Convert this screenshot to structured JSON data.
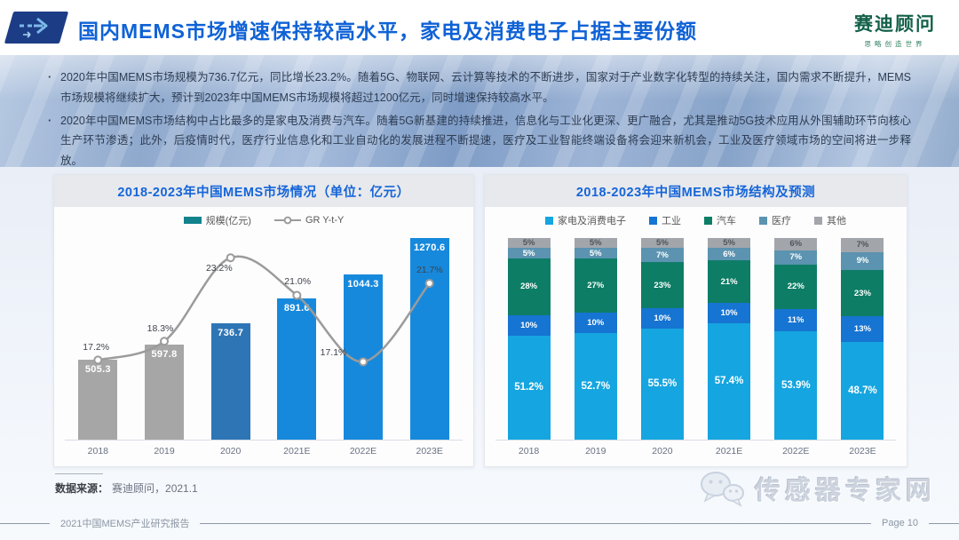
{
  "header": {
    "title": "国内MEMS市场增速保持较高水平，家电及消费电子占据主要份额",
    "logo": {
      "name": "赛迪顾问",
      "slogan": "思略创造世界"
    }
  },
  "summary": {
    "bullets": [
      "2020年中国MEMS市场规模为736.7亿元，同比增长23.2%。随着5G、物联网、云计算等技术的不断进步，国家对于产业数字化转型的持续关注，国内需求不断提升，MEMS市场规模将继续扩大，预计到2023年中国MEMS市场规模将超过1200亿元，同时增速保持较高水平。",
      "2020年中国MEMS市场结构中占比最多的是家电及消费与汽车。随着5G新基建的持续推进，信息化与工业化更深、更广融合，尤其是推动5G技术应用从外围辅助环节向核心生产环节渗透；此外，后疫情时代，医疗行业信息化和工业自动化的发展进程不断提速，医疗及工业智能终端设备将会迎来新机会，工业及医疗领域市场的空间将进一步释放。"
    ]
  },
  "chart_data": [
    {
      "type": "bar",
      "title": "2018-2023年中国MEMS市场情况（单位：亿元）",
      "categories": [
        "2018",
        "2019",
        "2020",
        "2021E",
        "2022E",
        "2023E"
      ],
      "series": [
        {
          "name": "规模(亿元)",
          "chart": "bar",
          "values": [
            505.3,
            597.8,
            736.7,
            891.6,
            1044.3,
            1270.6
          ],
          "colors": [
            "#a6a6a6",
            "#a6a6a6",
            "#2e75b6",
            "#1789dc",
            "#1789dc",
            "#1789dc"
          ],
          "legend_color": "#12828c"
        },
        {
          "name": "GR Y-t-Y",
          "chart": "line",
          "values": [
            17.2,
            18.3,
            23.2,
            21.0,
            17.1,
            21.7
          ],
          "unit": "%",
          "color": "#9b9b9b"
        }
      ],
      "ylim": [
        0,
        1300
      ],
      "line_axis": [
        14.2,
        24.2
      ],
      "legend_position": "top",
      "grid": false
    },
    {
      "type": "bar",
      "stacked": true,
      "title": "2018-2023年中国MEMS市场结构及预测",
      "categories": [
        "2018",
        "2019",
        "2020",
        "2021E",
        "2022E",
        "2023E"
      ],
      "unit": "%",
      "series": [
        {
          "name": "家电及消费电子",
          "color": "#15a5e0",
          "label_color": "#ffffff",
          "values": [
            51.2,
            52.7,
            55.5,
            57.4,
            53.9,
            48.7
          ]
        },
        {
          "name": "工业",
          "color": "#1674d2",
          "label_color": "#ffffff",
          "values": [
            10,
            10,
            10,
            10,
            11,
            13
          ]
        },
        {
          "name": "汽车",
          "color": "#0e7d66",
          "label_color": "#ffffff",
          "values": [
            28,
            27,
            23,
            21,
            22,
            23
          ]
        },
        {
          "name": "医疗",
          "color": "#5b93b0",
          "label_color": "#ffffff",
          "values": [
            5,
            5,
            7,
            6,
            7,
            9
          ]
        },
        {
          "name": "其他",
          "color": "#a2a6ab",
          "label_color": "#4f545c",
          "values": [
            5,
            5,
            5,
            5,
            6,
            7
          ]
        }
      ],
      "legend_position": "top",
      "grid": false
    }
  ],
  "source": {
    "label": "数据来源：",
    "value": "赛迪顾问，2021.1"
  },
  "footer": {
    "report": "2021中国MEMS产业研究报告",
    "page": "Page 10"
  },
  "watermark": {
    "text": "传感器专家网"
  }
}
